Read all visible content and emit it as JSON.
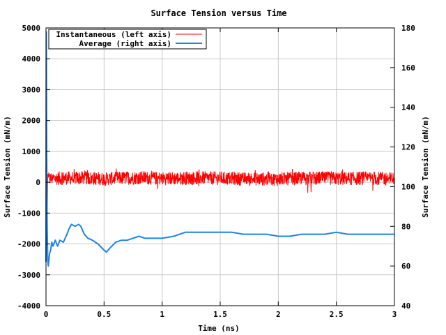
{
  "chart_data": {
    "type": "line",
    "title": "Surface Tension versus Time",
    "xlabel": "Time (ns)",
    "ylabel_left": "Surface Tension (mN/m)",
    "ylabel_right": "Surface Tension (mN/m)",
    "xlim": [
      0,
      3
    ],
    "ylim_left": [
      -4000,
      5000
    ],
    "ylim_right": [
      40,
      180
    ],
    "x_ticks": [
      "0",
      "0.5",
      "1",
      "1.5",
      "2",
      "2.5",
      "3"
    ],
    "y_left_ticks": [
      "-4000",
      "-3000",
      "-2000",
      "-1000",
      "0",
      "1000",
      "2000",
      "3000",
      "4000",
      "5000"
    ],
    "y_right_ticks": [
      "40",
      "60",
      "80",
      "100",
      "120",
      "140",
      "160",
      "180"
    ],
    "grid": true,
    "legend_position": "top-left",
    "series": [
      {
        "name": "Instantaneous (left axis)",
        "axis": "left",
        "color": "#ff0000",
        "x": [
          0,
          0.005,
          0.01,
          0.015,
          0.02,
          0.03,
          0.05,
          0.1,
          0.3,
          0.5,
          0.8,
          1.0,
          1.3,
          1.5,
          1.7,
          2.0,
          2.3,
          2.5,
          2.8,
          3.0
        ],
        "y": [
          4900,
          2500,
          -1500,
          300,
          150,
          100,
          120,
          130,
          140,
          110,
          150,
          120,
          140,
          130,
          110,
          100,
          140,
          120,
          130,
          110
        ],
        "band": 220
      },
      {
        "name": "Average (right axis)",
        "axis": "right",
        "color": "#1e82e6",
        "x": [
          0,
          0.003,
          0.006,
          0.01,
          0.015,
          0.02,
          0.03,
          0.04,
          0.05,
          0.06,
          0.08,
          0.1,
          0.12,
          0.15,
          0.18,
          0.2,
          0.22,
          0.25,
          0.28,
          0.3,
          0.33,
          0.36,
          0.4,
          0.45,
          0.5,
          0.52,
          0.55,
          0.6,
          0.65,
          0.7,
          0.75,
          0.8,
          0.85,
          0.9,
          1.0,
          1.1,
          1.2,
          1.3,
          1.4,
          1.5,
          1.6,
          1.7,
          1.8,
          1.9,
          2.0,
          2.1,
          2.2,
          2.3,
          2.4,
          2.5,
          2.6,
          2.7,
          2.8,
          2.9,
          3.0
        ],
        "y": [
          62,
          178,
          120,
          80,
          63,
          60,
          66,
          68,
          72,
          70,
          73,
          70,
          73,
          72,
          76,
          79,
          81,
          80,
          81,
          80,
          76,
          74,
          73,
          71,
          68,
          67,
          69,
          72,
          73,
          73,
          74,
          75,
          74,
          74,
          74,
          75,
          77,
          77,
          77,
          77,
          77,
          76,
          76,
          76,
          75,
          75,
          76,
          76,
          76,
          77,
          76,
          76,
          76,
          76,
          76
        ]
      }
    ]
  }
}
